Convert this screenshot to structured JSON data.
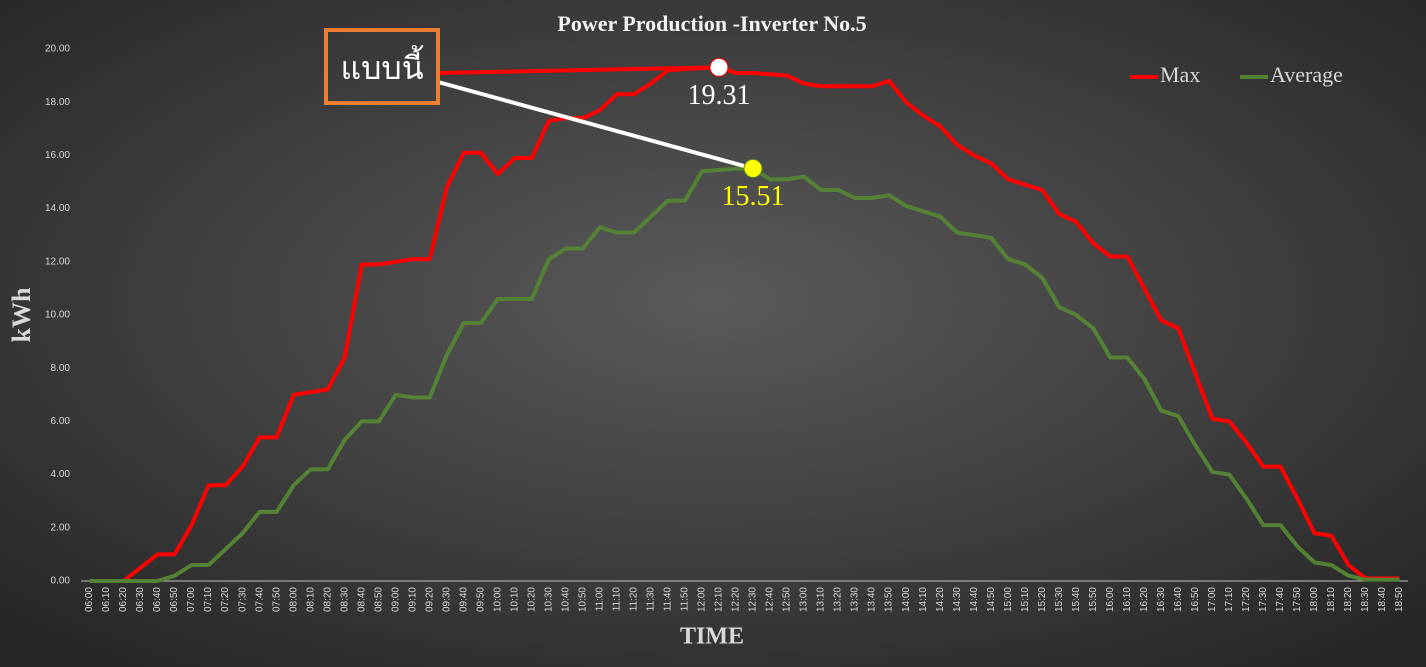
{
  "chart_data": {
    "type": "line",
    "title": "Power Production -Inverter No.5",
    "x_label": "TIME",
    "y_label": "kWh",
    "annotation": "แบบนี้",
    "categories": [
      "06:00",
      "06:10",
      "06:20",
      "06:30",
      "06:40",
      "06:50",
      "07:00",
      "07:10",
      "07:20",
      "07:30",
      "07:40",
      "07:50",
      "08:00",
      "08:10",
      "08:20",
      "08:30",
      "08:40",
      "08:50",
      "09:00",
      "09:10",
      "09:20",
      "09:30",
      "09:40",
      "09:50",
      "10:00",
      "10:10",
      "10:20",
      "10:30",
      "10:40",
      "10:50",
      "11:00",
      "11:10",
      "11:20",
      "11:30",
      "11:40",
      "11:50",
      "12:00",
      "12:10",
      "12:20",
      "12:30",
      "12:40",
      "12:50",
      "13:00",
      "13:10",
      "13:20",
      "13:30",
      "13:40",
      "13:50",
      "14:00",
      "14:10",
      "14:20",
      "14:30",
      "14:40",
      "14:50",
      "15:00",
      "15:10",
      "15:20",
      "15:30",
      "15:40",
      "15:50",
      "16:00",
      "16:10",
      "16:20",
      "16:30",
      "16:40",
      "16:50",
      "17:00",
      "17:10",
      "17:20",
      "17:30",
      "17:40",
      "17:50",
      "18:00",
      "18:10",
      "18:20",
      "18:30",
      "18:40",
      "18:50"
    ],
    "series": [
      {
        "name": "Max",
        "color": "#ff0000",
        "marker_color": "#ffffff",
        "values": [
          0,
          0,
          0,
          0.5,
          1.0,
          1.0,
          2.1,
          3.6,
          3.6,
          4.3,
          5.4,
          5.4,
          7.0,
          7.1,
          7.2,
          8.4,
          11.9,
          11.9,
          12.0,
          12.1,
          12.1,
          14.8,
          16.1,
          16.1,
          15.3,
          15.9,
          15.9,
          17.3,
          17.4,
          17.4,
          17.7,
          18.3,
          18.3,
          18.7,
          19.2,
          19.25,
          19.28,
          19.31,
          19.1,
          19.1,
          19.05,
          19.0,
          18.7,
          18.6,
          18.6,
          18.6,
          18.6,
          18.8,
          18.0,
          17.5,
          17.1,
          16.4,
          16.0,
          15.7,
          15.1,
          14.9,
          14.7,
          13.8,
          13.5,
          12.7,
          12.2,
          12.2,
          11.0,
          9.8,
          9.5,
          7.8,
          6.1,
          6.0,
          5.2,
          4.3,
          4.3,
          3.1,
          1.8,
          1.7,
          0.6,
          0.1,
          0.1,
          0.1
        ],
        "value_labels": [
          null,
          null,
          null,
          null,
          null,
          null,
          null,
          null,
          null,
          null,
          null,
          null,
          null,
          null,
          null,
          null,
          null,
          null,
          null,
          null,
          null,
          null,
          null,
          null,
          null,
          null,
          null,
          null,
          null,
          null,
          null,
          null,
          null,
          null,
          null,
          null,
          null,
          "19.31",
          null,
          null,
          null,
          null,
          null,
          null,
          null,
          null,
          null,
          null,
          null,
          null,
          null,
          null,
          null,
          null,
          null,
          null,
          null,
          null,
          null,
          null,
          null,
          null,
          null,
          null,
          null,
          null,
          null,
          null,
          null,
          null,
          null,
          null,
          null,
          null,
          null,
          null,
          null,
          null
        ]
      },
      {
        "name": "Average",
        "color": "#548235",
        "marker_color": "#ffff00",
        "values": [
          0,
          0,
          0,
          0,
          0,
          0.2,
          0.6,
          0.6,
          1.2,
          1.8,
          2.6,
          2.6,
          3.6,
          4.2,
          4.2,
          5.3,
          6.0,
          6.0,
          7.0,
          6.9,
          6.9,
          8.5,
          9.7,
          9.7,
          10.6,
          10.6,
          10.6,
          12.1,
          12.5,
          12.5,
          13.3,
          13.1,
          13.1,
          13.7,
          14.3,
          14.3,
          15.4,
          15.45,
          15.5,
          15.51,
          15.1,
          15.1,
          15.2,
          14.7,
          14.7,
          14.4,
          14.4,
          14.5,
          14.1,
          13.9,
          13.7,
          13.1,
          13.0,
          12.9,
          12.1,
          11.9,
          11.4,
          10.3,
          10.0,
          9.5,
          8.4,
          8.4,
          7.6,
          6.4,
          6.2,
          5.1,
          4.1,
          4.0,
          3.1,
          2.1,
          2.1,
          1.3,
          0.7,
          0.6,
          0.2,
          0.05,
          0.05,
          0.05
        ],
        "value_labels": [
          null,
          null,
          null,
          null,
          null,
          null,
          null,
          null,
          null,
          null,
          null,
          null,
          null,
          null,
          null,
          null,
          null,
          null,
          null,
          null,
          null,
          null,
          null,
          null,
          null,
          null,
          null,
          null,
          null,
          null,
          null,
          null,
          null,
          null,
          null,
          null,
          null,
          null,
          null,
          "15.51",
          null,
          null,
          null,
          null,
          null,
          null,
          null,
          null,
          null,
          null,
          null,
          null,
          null,
          null,
          null,
          null,
          null,
          null,
          null,
          null,
          null,
          null,
          null,
          null,
          null,
          null,
          null,
          null,
          null,
          null,
          null,
          null,
          null,
          null,
          null,
          null,
          null,
          null
        ]
      }
    ],
    "ylim": [
      0,
      20
    ],
    "yticks": [
      {
        "value": 0,
        "label": "0.00"
      },
      {
        "value": 2,
        "label": "2.00"
      },
      {
        "value": 4,
        "label": "4.00"
      },
      {
        "value": 6,
        "label": "6.00"
      },
      {
        "value": 8,
        "label": "8.00"
      },
      {
        "value": 10,
        "label": "10.00"
      },
      {
        "value": 12,
        "label": "12.00"
      },
      {
        "value": 14,
        "label": "14.00"
      },
      {
        "value": 16,
        "label": "16.00"
      },
      {
        "value": 18,
        "label": "18.00"
      },
      {
        "value": 20,
        "label": "20.00"
      }
    ],
    "grid": false,
    "legend": "top-right"
  }
}
